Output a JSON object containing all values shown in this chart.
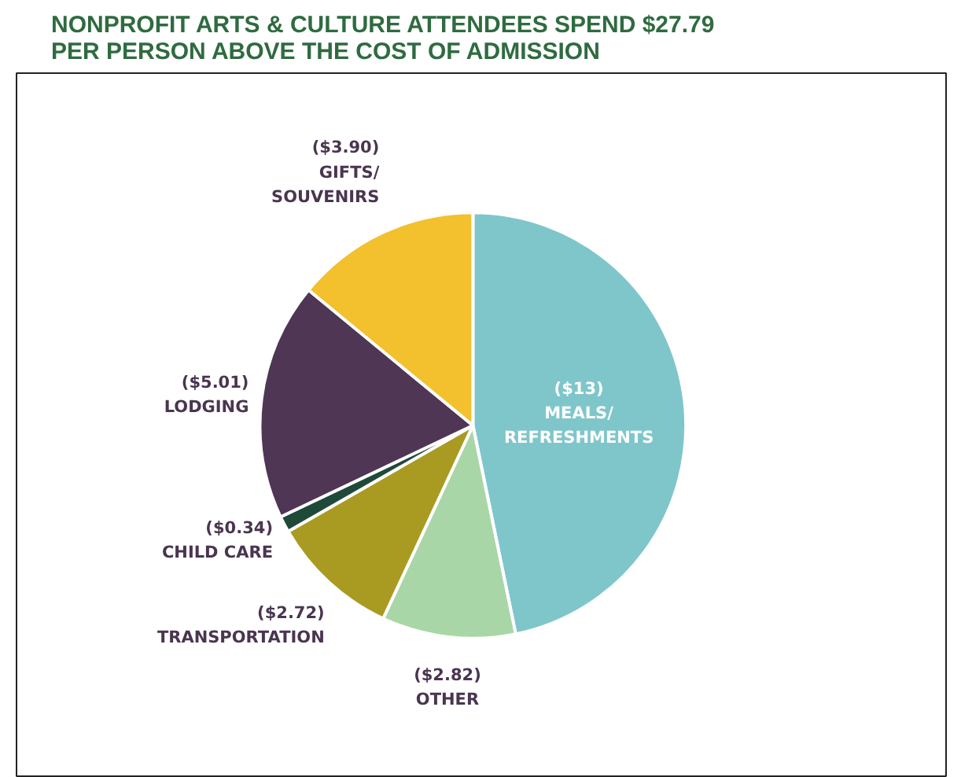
{
  "chart_data": {
    "type": "pie",
    "title": "NONPROFIT ARTS & CULTURE ATTENDEES SPEND $27.79 PER PERSON ABOVE THE COST OF ADMISSION",
    "categories": [
      "MEALS/REFRESHMENTS",
      "OTHER",
      "TRANSPORTATION",
      "CHILD CARE",
      "LODGING",
      "GIFTS/SOUVENIRS"
    ],
    "values": [
      13,
      2.82,
      2.72,
      0.34,
      5.01,
      3.9
    ],
    "value_labels": [
      "($13)",
      "($2.82)",
      "($2.72)",
      "($0.34)",
      "($5.01)",
      "($3.90)"
    ],
    "colors": [
      "#7fc6cb",
      "#a9d6a6",
      "#a99b22",
      "#1f4a3a",
      "#4f3655",
      "#f3c02e"
    ]
  }
}
